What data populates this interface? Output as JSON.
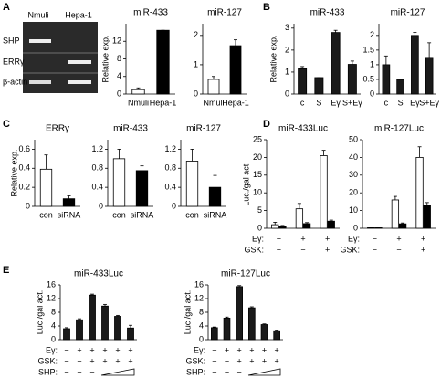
{
  "gel": {
    "panel": "A",
    "lanes": [
      "Nmuli",
      "Hepa-1"
    ],
    "rows": [
      "SHP",
      "ERRγ",
      "β-actin"
    ]
  },
  "chart_data": [
    {
      "type": "bar",
      "title": "miR-433",
      "ylabel": "Relative exp.",
      "categories": [
        "Nmuli",
        "Hepa-1"
      ],
      "values": [
        1,
        14.5
      ],
      "errors": [
        0.4,
        0
      ],
      "colors": [
        "#ffffff",
        "#000000"
      ],
      "ylim": [
        0,
        16
      ],
      "yticks": [
        0,
        4,
        8,
        12
      ]
    },
    {
      "type": "bar",
      "title": "miR-127",
      "categories": [
        "Nmuli",
        "Hepa-1"
      ],
      "values": [
        0.5,
        1.65
      ],
      "errors": [
        0.1,
        0.2
      ],
      "colors": [
        "#ffffff",
        "#000000"
      ],
      "ylim": [
        0,
        2.4
      ],
      "yticks": [
        0,
        1,
        2
      ]
    },
    {
      "type": "bar",
      "panel": "B",
      "title": "miR-433",
      "ylabel": "Relative exp.",
      "categories": [
        "c",
        "S",
        "Eγ",
        "S+Eγ"
      ],
      "values": [
        1.15,
        0.75,
        2.8,
        1.35
      ],
      "errors": [
        0.1,
        0,
        0.1,
        0.15
      ],
      "color": "#1a1a1a",
      "ylim": [
        0,
        3.2
      ],
      "yticks": [
        0,
        1,
        2,
        3
      ]
    },
    {
      "type": "bar",
      "title": "miR-127",
      "categories": [
        "c",
        "S",
        "Eγ",
        "S+Eγ"
      ],
      "values": [
        1.0,
        0.5,
        2.0,
        1.25
      ],
      "errors": [
        0.3,
        0,
        0.1,
        0.5
      ],
      "color": "#1a1a1a",
      "ylim": [
        0,
        2.4
      ],
      "yticks": [
        0,
        0.5,
        1,
        1.5,
        2
      ]
    },
    {
      "type": "bar",
      "panel": "C",
      "title": "ERRγ",
      "ylabel": "Relative exp.",
      "categories": [
        "con",
        "siRNA"
      ],
      "values": [
        0.39,
        0.08
      ],
      "errors": [
        0.15,
        0.03
      ],
      "colors": [
        "#ffffff",
        "#000000"
      ],
      "ylim": [
        0,
        0.7
      ],
      "yticks": [
        0,
        0.2,
        0.4,
        0.6
      ]
    },
    {
      "type": "bar",
      "title": "miR-433",
      "categories": [
        "con",
        "siRNA"
      ],
      "values": [
        1.0,
        0.75
      ],
      "errors": [
        0.2,
        0.1
      ],
      "colors": [
        "#ffffff",
        "#000000"
      ],
      "ylim": [
        0,
        1.4
      ],
      "yticks": [
        0,
        0.4,
        0.8,
        1.2
      ]
    },
    {
      "type": "bar",
      "title": "miR-127",
      "categories": [
        "con",
        "siRNA"
      ],
      "values": [
        0.95,
        0.4
      ],
      "errors": [
        0.25,
        0.25
      ],
      "colors": [
        "#ffffff",
        "#000000"
      ],
      "ylim": [
        0,
        1.4
      ],
      "yticks": [
        0,
        0.4,
        0.8,
        1.2
      ]
    },
    {
      "type": "bar",
      "panel": "D",
      "title": "miR-433Luc",
      "ylabel": "Luc./gal act.",
      "series": [
        {
          "color": "#ffffff",
          "values": [
            1,
            5.5,
            20.5
          ],
          "errors": [
            0.7,
            1.5,
            1.5
          ]
        },
        {
          "color": "#000000",
          "values": [
            0.5,
            1.3,
            2
          ],
          "errors": [
            0.3,
            0.3,
            0.3
          ]
        }
      ],
      "conditions": [
        {
          "label": "Eγ:",
          "values": [
            "−",
            "+",
            "+"
          ]
        },
        {
          "label": "GSK:",
          "values": [
            "−",
            "−",
            "+"
          ]
        }
      ],
      "ylim": [
        0,
        25
      ],
      "yticks": [
        0,
        5,
        10,
        15,
        20,
        25
      ]
    },
    {
      "type": "bar",
      "title": "miR-127Luc",
      "series": [
        {
          "color": "#ffffff",
          "values": [
            0.3,
            16,
            40
          ],
          "errors": [
            0,
            2,
            6
          ]
        },
        {
          "color": "#000000",
          "values": [
            0.3,
            2.5,
            13
          ],
          "errors": [
            0,
            0.5,
            1.5
          ]
        }
      ],
      "conditions": [
        {
          "label": "Eγ:",
          "values": [
            "−",
            "+",
            "+"
          ]
        },
        {
          "label": "GSK:",
          "values": [
            "−",
            "−",
            "+"
          ]
        }
      ],
      "ylim": [
        0,
        50
      ],
      "yticks": [
        0,
        10,
        20,
        30,
        40,
        50
      ]
    },
    {
      "type": "bar",
      "panel": "E",
      "title": "miR-433Luc",
      "ylabel": "Luc./gal act.",
      "values": [
        3.2,
        5.8,
        13,
        9.8,
        6.8,
        3.4
      ],
      "errors": [
        0.3,
        0.3,
        0.3,
        0.5,
        0.3,
        0.8
      ],
      "color": "#1a1a1a",
      "conditions": [
        {
          "label": "Eγ:",
          "values": [
            "−",
            "+",
            "+",
            "+",
            "+",
            "+"
          ]
        },
        {
          "label": "GSK:",
          "values": [
            "−",
            "−",
            "+",
            "+",
            "+",
            "+"
          ]
        },
        {
          "label": "SHP:",
          "values": [
            "−",
            "−",
            "−",
            null,
            null,
            null
          ]
        }
      ],
      "ylim": [
        0,
        16
      ],
      "yticks": [
        0,
        4,
        8,
        12,
        16
      ]
    },
    {
      "type": "bar",
      "title": "miR-127Luc",
      "ylabel": "Luc./gal act.",
      "values": [
        3.5,
        6.3,
        15.5,
        9.3,
        4.4,
        2.6
      ],
      "errors": [
        0.2,
        0.3,
        0.3,
        0.3,
        0.2,
        0.2
      ],
      "color": "#1a1a1a",
      "conditions": [
        {
          "label": "Eγ:",
          "values": [
            "−",
            "+",
            "+",
            "+",
            "+",
            "+"
          ]
        },
        {
          "label": "GSK:",
          "values": [
            "−",
            "−",
            "+",
            "+",
            "+",
            "+"
          ]
        },
        {
          "label": "SHP:",
          "values": [
            "−",
            "−",
            "−",
            null,
            null,
            null
          ]
        }
      ],
      "ylim": [
        0,
        16
      ],
      "yticks": [
        0,
        4,
        8,
        12,
        16
      ]
    }
  ]
}
